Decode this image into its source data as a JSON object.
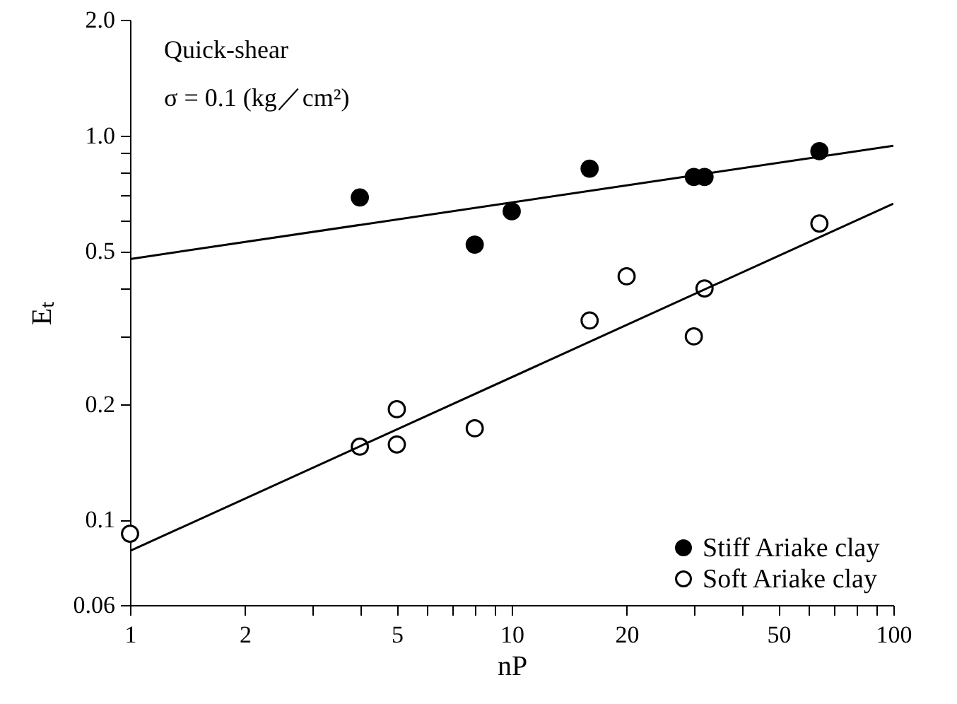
{
  "chart_data": {
    "type": "scatter",
    "xlabel": "nP",
    "ylabel": "Eₜ",
    "annotations": [
      "Quick-shear",
      "σ = 0.1 (kg／cm²)"
    ],
    "log": "xy",
    "xlim": [
      1,
      100
    ],
    "ylim": [
      0.06,
      2.0
    ],
    "xticks": [
      1,
      2,
      {
        "value": 3,
        "label": null
      },
      {
        "value": 4,
        "label": null
      },
      5,
      {
        "value": 6,
        "label": null
      },
      {
        "value": 7,
        "label": null
      },
      {
        "value": 8,
        "label": null
      },
      {
        "value": 9,
        "label": null
      },
      10,
      20,
      {
        "value": 30,
        "label": null
      },
      {
        "value": 40,
        "label": null
      },
      50,
      {
        "value": 60,
        "label": null
      },
      {
        "value": 70,
        "label": null
      },
      {
        "value": 80,
        "label": null
      },
      {
        "value": 90,
        "label": null
      },
      100
    ],
    "yticks": [
      0.06,
      0.1,
      0.2,
      {
        "value": 0.3,
        "label": null
      },
      {
        "value": 0.4,
        "label": null
      },
      0.5,
      {
        "value": 0.6,
        "label": null
      },
      {
        "value": 0.7,
        "label": null
      },
      {
        "value": 0.8,
        "label": null
      },
      {
        "value": 0.9,
        "label": null
      },
      {
        "value": 1,
        "label": "1.0"
      },
      {
        "value": 2,
        "label": "2.0"
      }
    ],
    "grid": false,
    "legend": "bottom right",
    "marker": "circle",
    "series": [
      {
        "name": "Stiff Ariake clay",
        "color": "#000000",
        "x": [
          4,
          8,
          10,
          16,
          30,
          32,
          64
        ],
        "values": [
          0.69,
          0.52,
          0.635,
          0.82,
          0.78,
          0.78,
          0.91
        ]
      },
      {
        "name": "Soft Ariake clay",
        "color": "#ffffff",
        "x": [
          1,
          4,
          5,
          5,
          8,
          16,
          20,
          30,
          32,
          64
        ],
        "values": [
          0.092,
          0.155,
          0.194,
          0.157,
          0.173,
          0.33,
          0.43,
          0.3,
          0.4,
          0.59
        ]
      },
      {
        "type": "line",
        "marker": "none",
        "color": "#000000",
        "x": [
          1,
          100
        ],
        "values": [
          0.477,
          0.94
        ]
      },
      {
        "type": "line",
        "marker": "none",
        "color": "#000000",
        "x": [
          1,
          100
        ],
        "values": [
          0.083,
          0.665
        ]
      }
    ]
  }
}
